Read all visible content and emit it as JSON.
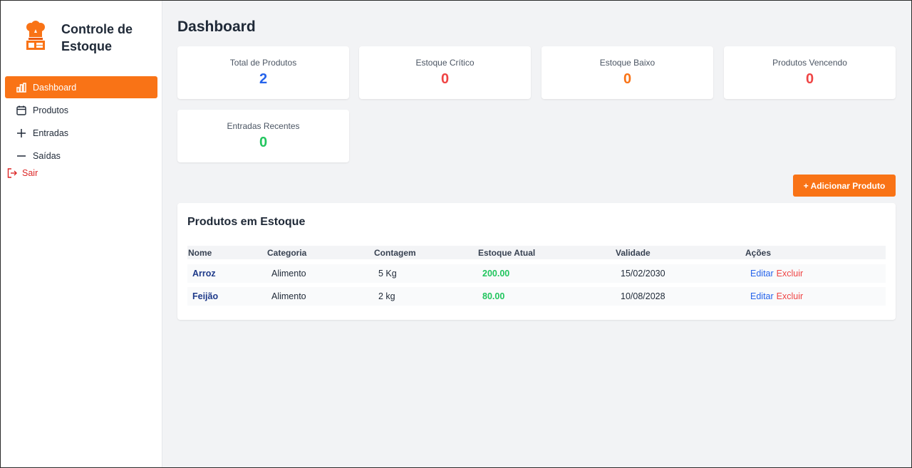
{
  "brand": {
    "title": "Controle de Estoque"
  },
  "nav": {
    "items": [
      {
        "label": "Dashboard",
        "icon": "bar-chart-icon"
      },
      {
        "label": "Produtos",
        "icon": "calendar-icon"
      },
      {
        "label": "Entradas",
        "icon": "plus-icon"
      },
      {
        "label": "Saídas",
        "icon": "minus-icon"
      }
    ],
    "logout": "Sair"
  },
  "page": {
    "title": "Dashboard"
  },
  "stats": [
    {
      "label": "Total de Produtos",
      "value": "2",
      "color": "#2563eb"
    },
    {
      "label": "Estoque Crítico",
      "value": "0",
      "color": "#ef4444"
    },
    {
      "label": "Estoque Baixo",
      "value": "0",
      "color": "#f97316"
    },
    {
      "label": "Produtos Vencendo",
      "value": "0",
      "color": "#ef4444"
    },
    {
      "label": "Entradas Recentes",
      "value": "0",
      "color": "#22c55e"
    }
  ],
  "actions": {
    "add_product": "+ Adicionar Produto"
  },
  "table": {
    "title": "Produtos em Estoque",
    "columns": [
      "Nome",
      "Categoria",
      "Contagem",
      "Estoque Atual",
      "Validade",
      "Ações"
    ],
    "rows": [
      {
        "nome": "Arroz",
        "categoria": "Alimento",
        "contagem": "5 Kg",
        "estoque": "200.00",
        "validade": "15/02/2030",
        "editar": "Editar",
        "excluir": "Excluir"
      },
      {
        "nome": "Feijão",
        "categoria": "Alimento",
        "contagem": "2 kg",
        "estoque": "80.00",
        "validade": "10/08/2028",
        "editar": "Editar",
        "excluir": "Excluir"
      }
    ]
  },
  "colors": {
    "accent": "#f97316",
    "danger": "#ef4444",
    "success": "#22c55e",
    "primary": "#2563eb"
  }
}
